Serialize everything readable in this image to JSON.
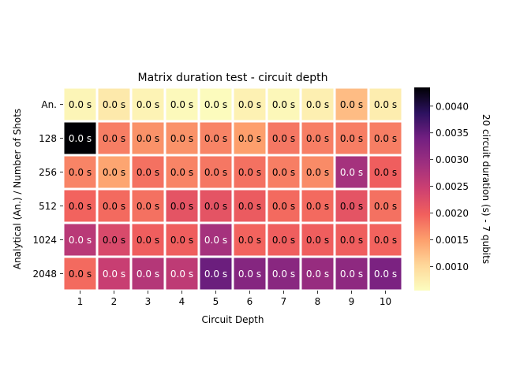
{
  "chart_data": {
    "type": "heatmap",
    "title": "Matrix duration test - circuit depth",
    "xlabel": "Circuit Depth",
    "ylabel": "Analytical (An.) / Number of Shots",
    "colorbar_label": "20 circuit duration (s) - 7 qubits",
    "x_categories": [
      "1",
      "2",
      "3",
      "4",
      "5",
      "6",
      "7",
      "8",
      "9",
      "10"
    ],
    "y_categories": [
      "An.",
      "128",
      "256",
      "512",
      "1024",
      "2048"
    ],
    "cell_label": "0.0 s",
    "colorbar_ticks": [
      0.001,
      0.0015,
      0.002,
      0.0025,
      0.003,
      0.0035,
      0.004
    ],
    "colorbar_tick_labels": [
      "0.0010",
      "0.0015",
      "0.0020",
      "0.0025",
      "0.0030",
      "0.0035",
      "0.0040"
    ],
    "vmin": 0.00055,
    "vmax": 0.00435,
    "colormap": "magma_r",
    "grid": false,
    "values": [
      [
        0.00065,
        0.0008,
        0.00068,
        0.0006,
        0.00058,
        0.0007,
        0.00062,
        0.00072,
        0.00125,
        0.00075
      ],
      [
        0.00435,
        0.00175,
        0.0016,
        0.0016,
        0.0017,
        0.0015,
        0.0018,
        0.00175,
        0.00175,
        0.00175
      ],
      [
        0.0017,
        0.00145,
        0.00185,
        0.0017,
        0.0018,
        0.00185,
        0.00175,
        0.00165,
        0.00285,
        0.002
      ],
      [
        0.00195,
        0.0019,
        0.00185,
        0.00215,
        0.00215,
        0.00205,
        0.0019,
        0.0019,
        0.00215,
        0.00185
      ],
      [
        0.00265,
        0.0023,
        0.002,
        0.002,
        0.00285,
        0.00195,
        0.002,
        0.002,
        0.002,
        0.00195
      ],
      [
        0.0019,
        0.0025,
        0.0027,
        0.0026,
        0.00345,
        0.0032,
        0.00315,
        0.003,
        0.0031,
        0.0033
      ]
    ]
  }
}
